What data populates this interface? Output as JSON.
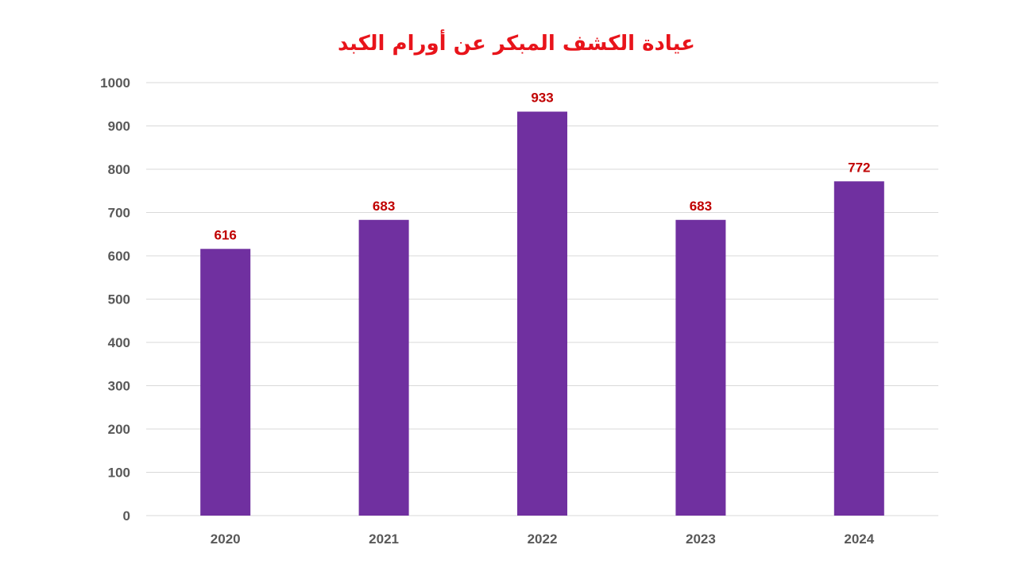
{
  "colors": {
    "title": "#e8141b",
    "bar": "#7030a0",
    "data_label": "#c00000",
    "tick": "#595959",
    "grid": "#d9d9d9"
  },
  "chart_data": {
    "type": "bar",
    "title": "عيادة الكشف المبكر عن أورام الكبد",
    "xlabel": "",
    "ylabel": "",
    "categories": [
      "2020",
      "2021",
      "2022",
      "2023",
      "2024"
    ],
    "values": [
      616,
      683,
      933,
      683,
      772
    ],
    "ylim": [
      0,
      1000
    ],
    "yticks": [
      0,
      100,
      200,
      300,
      400,
      500,
      600,
      700,
      800,
      900,
      1000
    ],
    "grid": true,
    "legend": "none",
    "data_labels": true
  }
}
